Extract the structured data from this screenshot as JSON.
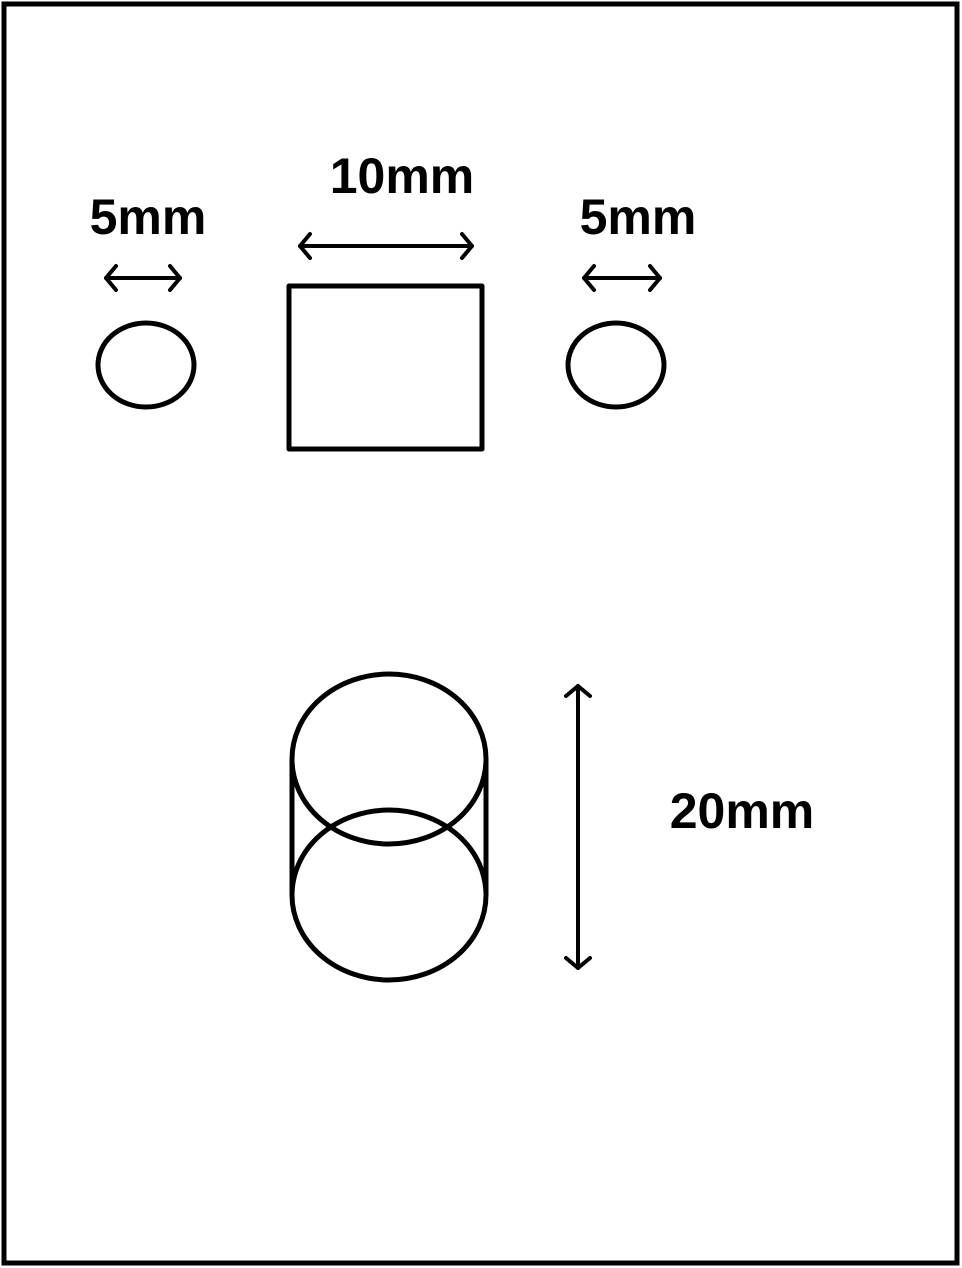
{
  "diagram": {
    "labels": {
      "left_circle_width": "5mm",
      "square_width": "10mm",
      "right_circle_width": "5mm",
      "cylinder_height": "20mm"
    },
    "colors": {
      "stroke": "#000000",
      "background": "#ffffff"
    }
  }
}
